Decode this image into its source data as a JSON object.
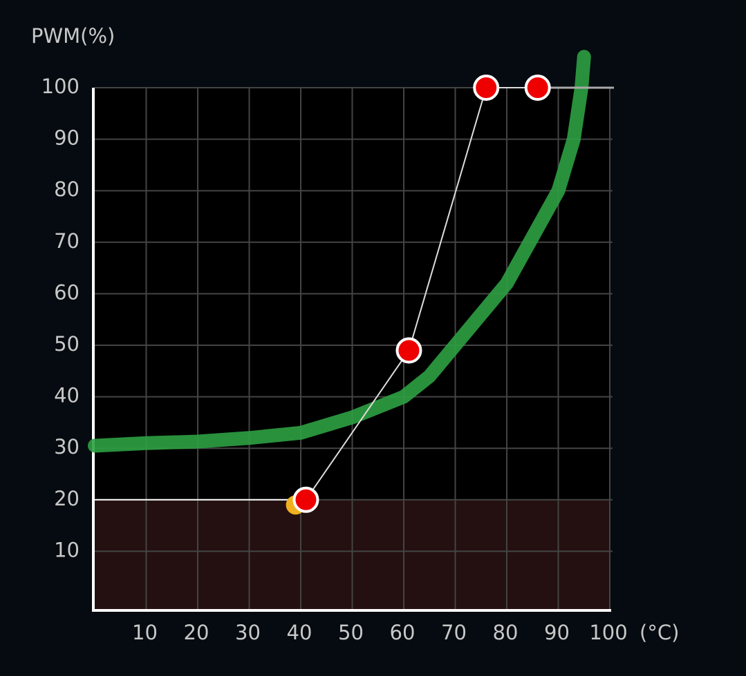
{
  "chart_data": {
    "type": "line",
    "ylabel": "PWM(%)",
    "xlabel": "(°C)",
    "xlim": [
      0,
      100
    ],
    "ylim": [
      0,
      100
    ],
    "xticks": [
      10,
      20,
      30,
      40,
      50,
      60,
      70,
      80,
      90,
      100
    ],
    "yticks": [
      10,
      20,
      30,
      40,
      50,
      60,
      70,
      80,
      90,
      100
    ],
    "grid": true,
    "series": [
      {
        "color": "#2ea043",
        "x": [
          0,
          10,
          20,
          30,
          40,
          50,
          60,
          65,
          70,
          75,
          80,
          85,
          90,
          93,
          94.5,
          95
        ],
        "values": [
          30.5,
          31,
          31.3,
          32,
          33,
          36,
          40,
          44,
          50,
          56,
          62,
          71,
          80,
          90,
          100,
          106
        ]
      },
      {
        "color": "#ee0000",
        "x": [
          41,
          61,
          76,
          86
        ],
        "values": [
          20,
          49,
          100,
          100
        ]
      }
    ],
    "marker": {
      "x": 39,
      "y": 19,
      "color": "#f0b020"
    }
  }
}
